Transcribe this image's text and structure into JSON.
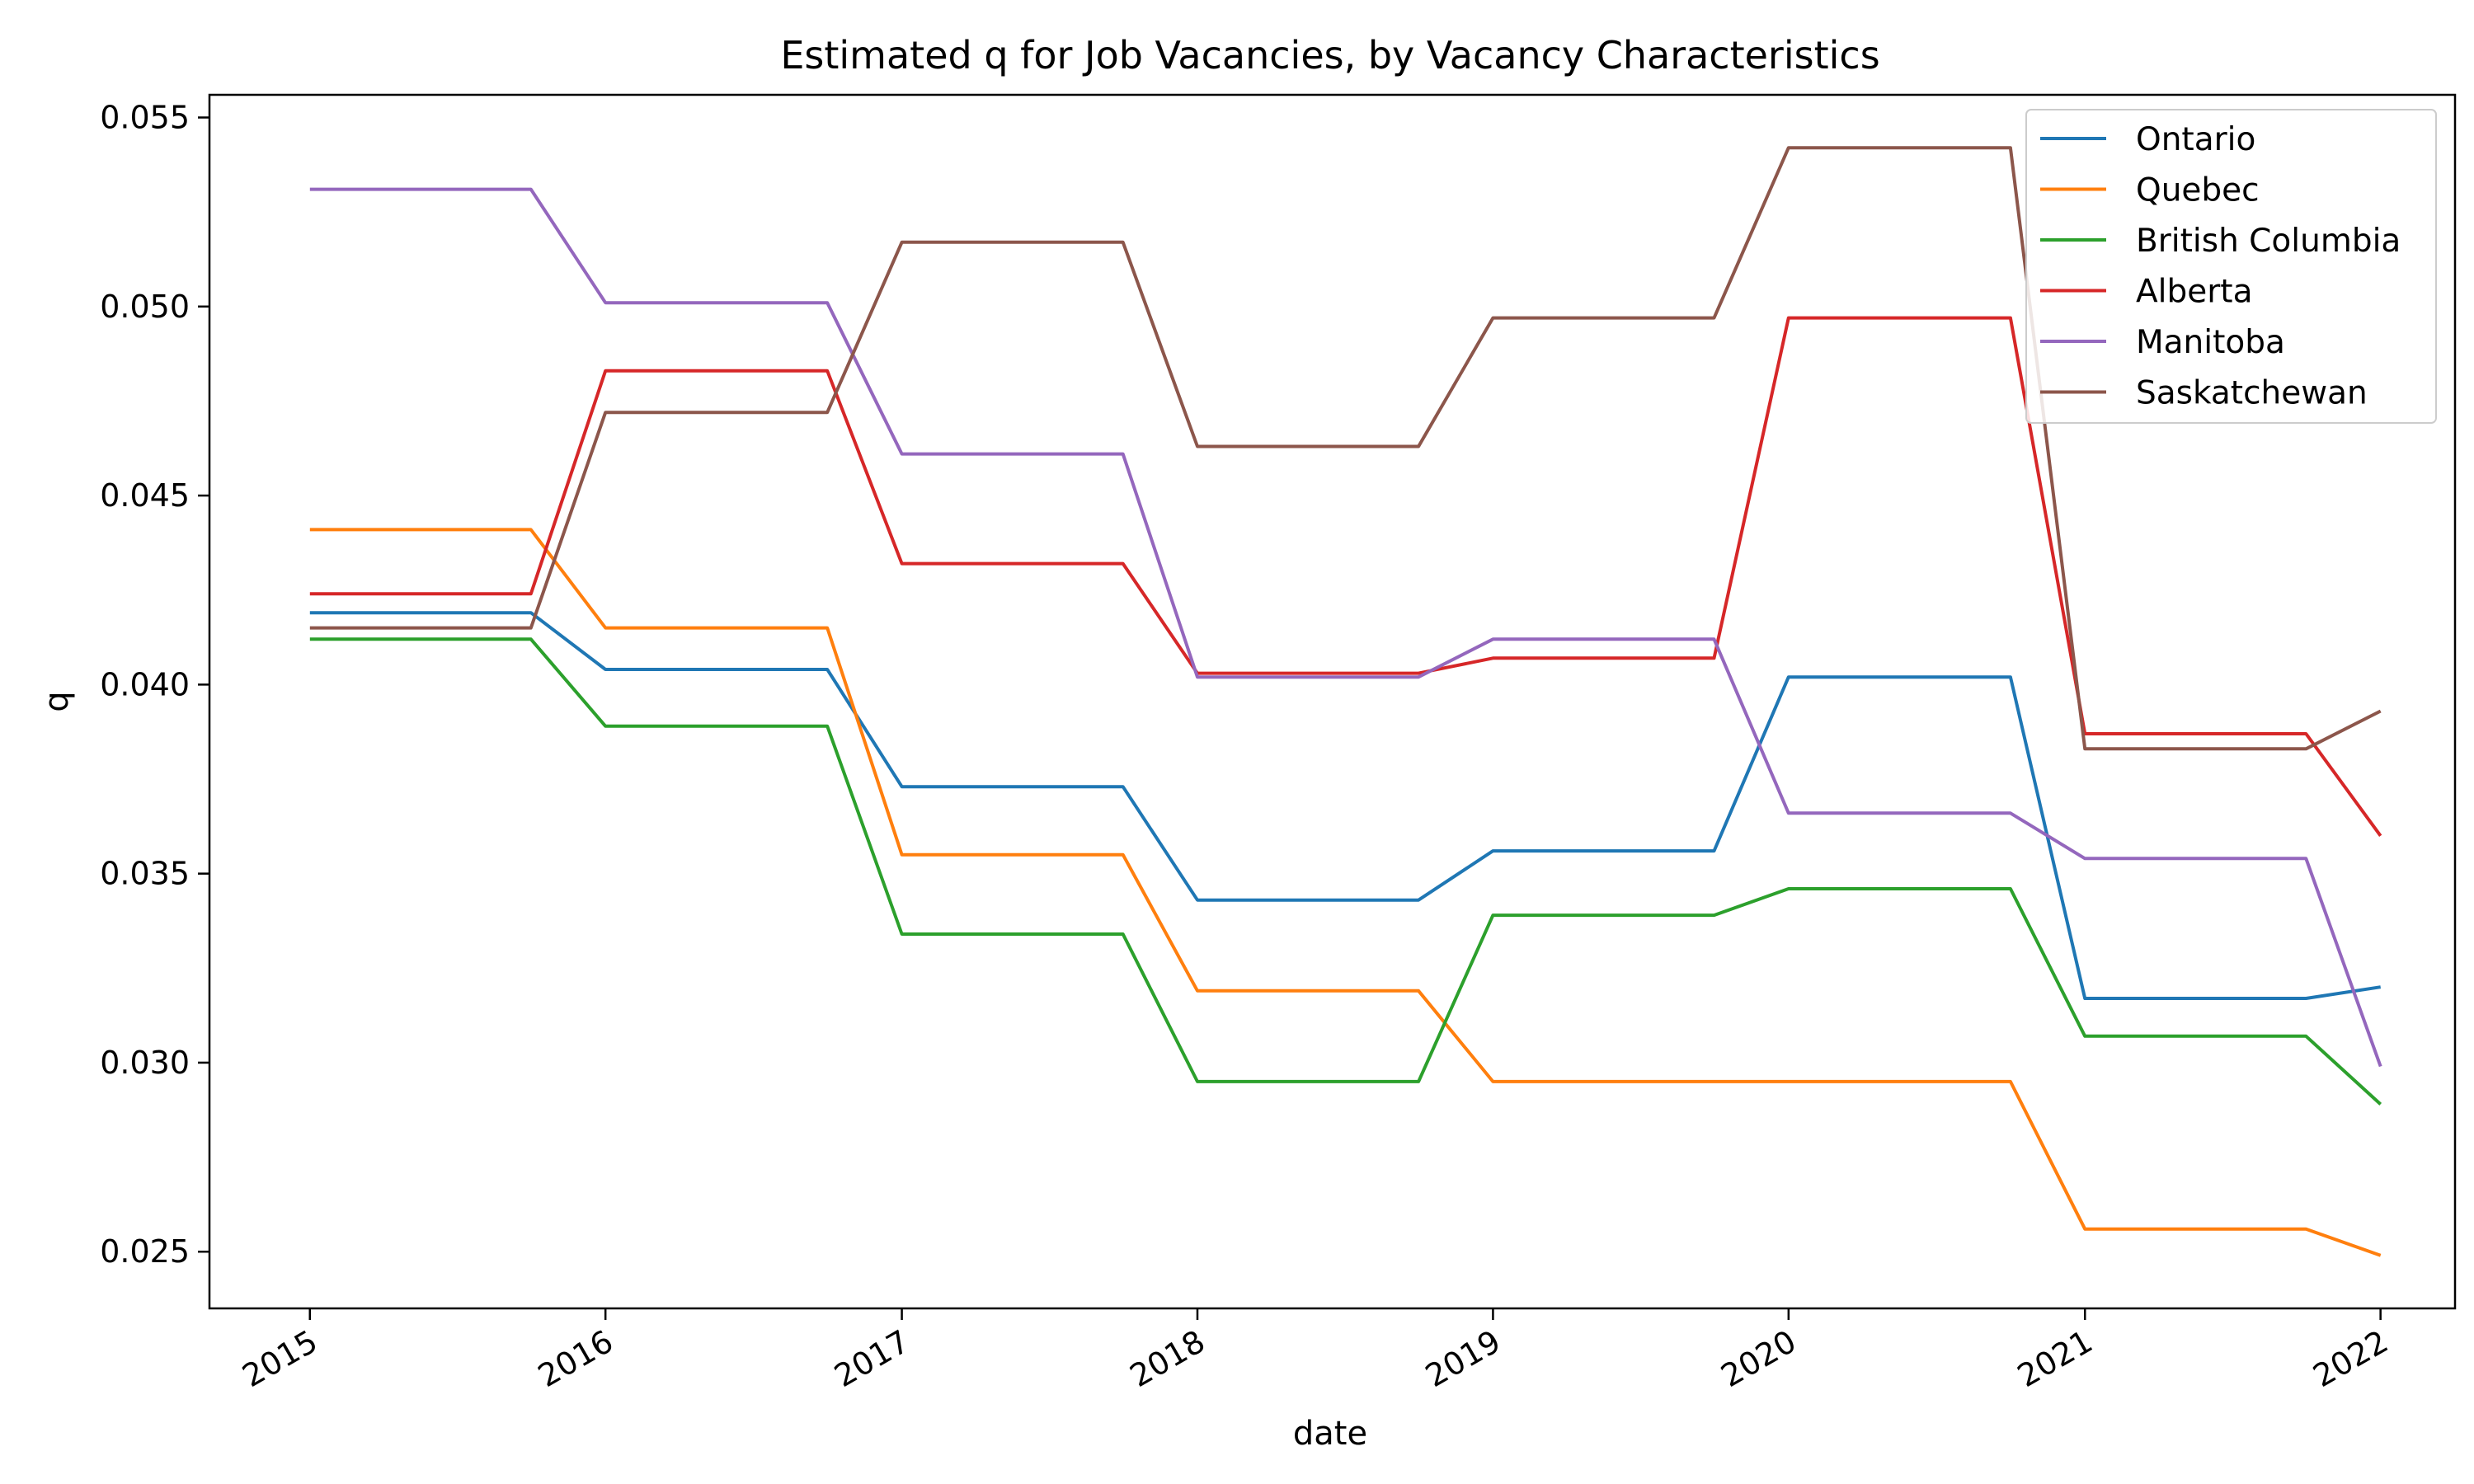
{
  "chart_data": {
    "type": "line",
    "title": "Estimated q for Job Vacancies, by Vacancy Characteristics",
    "xlabel": "date",
    "ylabel": "q",
    "x": [
      "2015-01-01",
      "2015-10-01",
      "2016-01-01",
      "2016-10-01",
      "2017-01-01",
      "2017-10-01",
      "2018-01-01",
      "2018-10-01",
      "2019-01-01",
      "2019-10-01",
      "2020-01-01",
      "2020-10-01",
      "2021-01-01",
      "2021-10-01",
      "2022-01-01"
    ],
    "xlim": [
      "2014-08-30",
      "2022-04-03"
    ],
    "x_ticks": [
      {
        "label": "2015",
        "date": "2015-01-01"
      },
      {
        "label": "2016",
        "date": "2016-01-01"
      },
      {
        "label": "2017",
        "date": "2017-01-01"
      },
      {
        "label": "2018",
        "date": "2018-01-01"
      },
      {
        "label": "2019",
        "date": "2019-01-01"
      },
      {
        "label": "2020",
        "date": "2020-01-01"
      },
      {
        "label": "2021",
        "date": "2021-01-01"
      },
      {
        "label": "2022",
        "date": "2022-01-01"
      }
    ],
    "ylim": [
      0.0235,
      0.0556
    ],
    "y_ticks": [
      {
        "label": "0.025",
        "value": 0.025
      },
      {
        "label": "0.030",
        "value": 0.03
      },
      {
        "label": "0.035",
        "value": 0.035
      },
      {
        "label": "0.040",
        "value": 0.04
      },
      {
        "label": "0.045",
        "value": 0.045
      },
      {
        "label": "0.050",
        "value": 0.05
      },
      {
        "label": "0.055",
        "value": 0.055
      }
    ],
    "grid": false,
    "legend_position": "top-right",
    "series": [
      {
        "name": "Ontario",
        "color": "#1f77b4",
        "values": [
          0.0419,
          0.0419,
          0.0404,
          0.0404,
          0.0373,
          0.0373,
          0.0343,
          0.0343,
          0.0356,
          0.0356,
          0.0402,
          0.0402,
          0.0317,
          0.0317,
          0.032
        ]
      },
      {
        "name": "Quebec",
        "color": "#ff7f0e",
        "values": [
          0.0441,
          0.0441,
          0.0415,
          0.0415,
          0.0355,
          0.0355,
          0.0319,
          0.0319,
          0.0295,
          0.0295,
          0.0295,
          0.0295,
          0.0256,
          0.0256,
          0.0249
        ]
      },
      {
        "name": "British Columbia",
        "color": "#2ca02c",
        "values": [
          0.0412,
          0.0412,
          0.0389,
          0.0389,
          0.0334,
          0.0334,
          0.0295,
          0.0295,
          0.0339,
          0.0339,
          0.0346,
          0.0346,
          0.0307,
          0.0307,
          0.0289
        ]
      },
      {
        "name": "Alberta",
        "color": "#d62728",
        "values": [
          0.0424,
          0.0424,
          0.0483,
          0.0483,
          0.0432,
          0.0432,
          0.0403,
          0.0403,
          0.0407,
          0.0407,
          0.0497,
          0.0497,
          0.0387,
          0.0387,
          0.036
        ]
      },
      {
        "name": "Manitoba",
        "color": "#9467bd",
        "values": [
          0.0531,
          0.0531,
          0.0501,
          0.0501,
          0.0461,
          0.0461,
          0.0402,
          0.0402,
          0.0412,
          0.0412,
          0.0366,
          0.0366,
          0.0354,
          0.0354,
          0.0299
        ]
      },
      {
        "name": "Saskatchewan",
        "color": "#8c564b",
        "values": [
          0.0415,
          0.0415,
          0.0472,
          0.0472,
          0.0517,
          0.0517,
          0.0463,
          0.0463,
          0.0497,
          0.0497,
          0.0542,
          0.0542,
          0.0383,
          0.0383,
          0.0393
        ]
      }
    ]
  }
}
